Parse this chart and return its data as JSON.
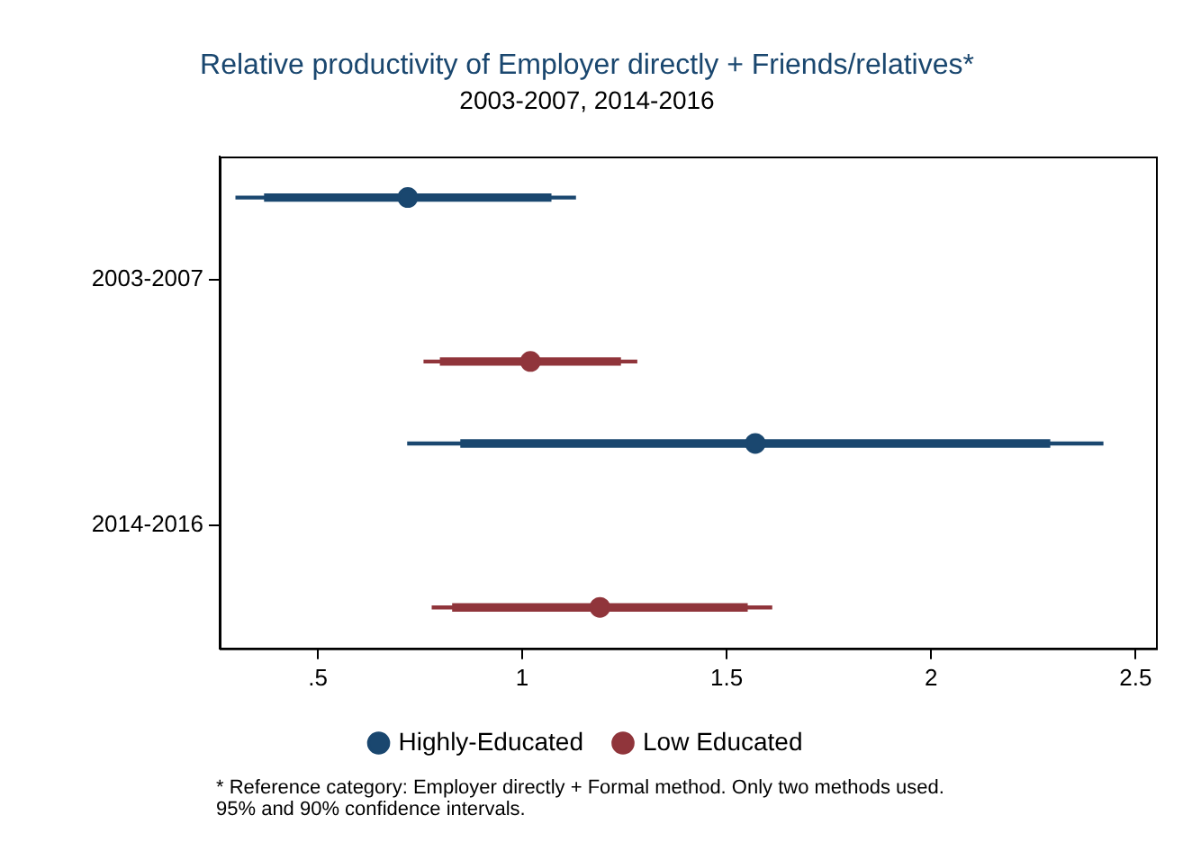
{
  "chart_data": {
    "type": "scatter",
    "title": "Relative productivity of Employer directly + Friends/relatives*",
    "subtitle": "2003-2007, 2014-2016",
    "orientation": "horizontal",
    "categories": [
      null,
      "2003-2007",
      null,
      null,
      "2014-2016",
      null
    ],
    "series": [
      {
        "type": "bar",
        "color": "#1a476f",
        "base": [
          0.3,
          null,
          null,
          0.72,
          null,
          null
        ],
        "values": [
          0.83,
          null,
          null,
          1.7,
          null,
          null
        ]
      },
      {
        "type": "bar",
        "color": "#1a476f",
        "base": [
          0.37,
          null,
          null,
          0.85,
          null,
          null
        ],
        "values": [
          0.7,
          null,
          null,
          1.44,
          null,
          null
        ]
      },
      {
        "type": "bar",
        "color": "#90353b",
        "base": [
          null,
          null,
          0.76,
          null,
          null,
          0.78
        ],
        "values": [
          null,
          null,
          0.52,
          null,
          null,
          0.83
        ]
      },
      {
        "type": "bar",
        "color": "#90353b",
        "base": [
          null,
          null,
          0.8,
          null,
          null,
          0.83
        ],
        "values": [
          null,
          null,
          0.44,
          null,
          null,
          0.72
        ]
      },
      {
        "name": "Highly-Educated",
        "color": "#1a476f",
        "values": [
          0.72,
          null,
          null,
          1.57,
          null,
          null
        ]
      },
      {
        "name": "Low Educated",
        "color": "#90353b",
        "values": [
          null,
          null,
          1.02,
          null,
          null,
          1.19
        ]
      }
    ],
    "marker": "circle",
    "xlim": [
      0.26,
      2.55
    ],
    "xticks": [
      {
        "value": 0.5,
        "label": ".5"
      },
      1,
      1.5,
      2,
      2.5
    ],
    "legend": "bottom",
    "annotations": [
      "* Reference category: Employer directly + Formal method. Only two methods used.\n95% and 90% confidence intervals."
    ]
  }
}
